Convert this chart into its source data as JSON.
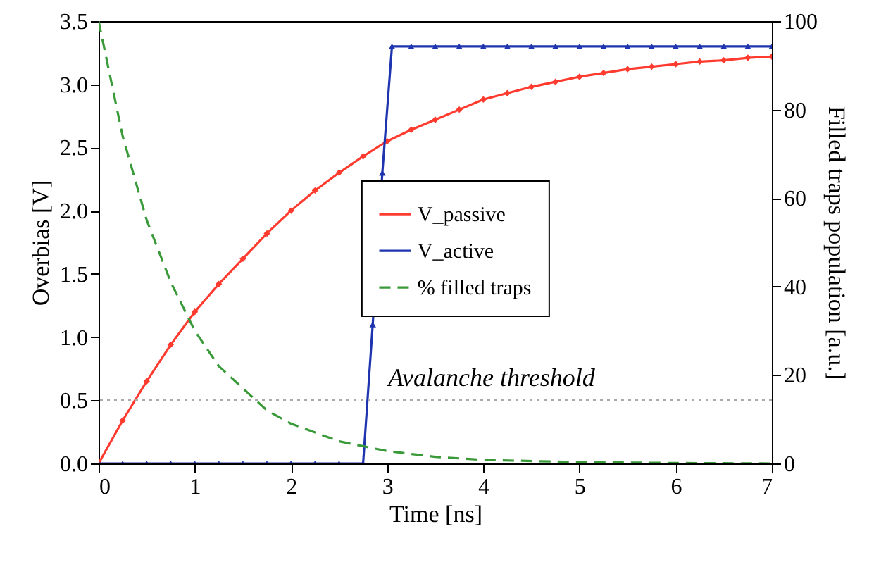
{
  "chart_data": {
    "type": "line",
    "xlabel": "Time [ns]",
    "ylabel": "Overbias [V]",
    "y2label": "Filled traps population [a.u.]",
    "xlim": [
      0,
      7
    ],
    "xticks": [
      0,
      1,
      2,
      3,
      4,
      5,
      6,
      7
    ],
    "ylim": [
      0,
      3.5
    ],
    "yticks": [
      {
        "value": 0,
        "label": "0.0"
      },
      {
        "value": 0.5,
        "label": "0.5"
      },
      {
        "value": 1,
        "label": "1.0"
      },
      {
        "value": 1.5,
        "label": "1.5"
      },
      {
        "value": 2,
        "label": "2.0"
      },
      {
        "value": 2.5,
        "label": "2.5"
      },
      {
        "value": 3,
        "label": "3.0"
      },
      {
        "value": 3.5,
        "label": "3.5"
      }
    ],
    "y2lim": [
      0,
      100
    ],
    "y2ticks": [
      0,
      20,
      40,
      60,
      80,
      100
    ],
    "grid": false,
    "legend": "right",
    "series": [
      {
        "name": "V_passive",
        "color": "#ff3b2f",
        "marker": "diamond",
        "line_style": "solid",
        "x": [
          0,
          0.25,
          0.5,
          0.75,
          1,
          1.25,
          1.5,
          1.75,
          2,
          2.25,
          2.5,
          2.75,
          3,
          3.25,
          3.5,
          3.75,
          4,
          4.25,
          4.5,
          4.75,
          5,
          5.25,
          5.5,
          5.75,
          6,
          6.25,
          6.5,
          6.75,
          7
        ],
        "values": [
          0,
          0.34,
          0.65,
          0.94,
          1.2,
          1.42,
          1.62,
          1.82,
          2,
          2.16,
          2.3,
          2.43,
          2.55,
          2.64,
          2.72,
          2.8,
          2.88,
          2.93,
          2.98,
          3.02,
          3.06,
          3.09,
          3.12,
          3.14,
          3.16,
          3.18,
          3.19,
          3.21,
          3.22
        ]
      },
      {
        "name": "V_active",
        "color": "#1f35b0",
        "marker": "triangle",
        "line_style": "solid",
        "x": [
          0,
          0.25,
          0.5,
          0.75,
          1,
          1.25,
          1.5,
          1.75,
          2,
          2.25,
          2.5,
          2.75,
          2.85,
          2.95,
          3.05,
          3.25,
          3.5,
          3.75,
          4,
          4.25,
          4.5,
          4.75,
          5,
          5.25,
          5.5,
          5.75,
          6,
          6.25,
          6.5,
          6.75,
          7
        ],
        "values": [
          0,
          0,
          0,
          0,
          0,
          0,
          0,
          0,
          0,
          0,
          0,
          0,
          1.1,
          2.3,
          3.3,
          3.3,
          3.3,
          3.3,
          3.3,
          3.3,
          3.3,
          3.3,
          3.3,
          3.3,
          3.3,
          3.3,
          3.3,
          3.3,
          3.3,
          3.3,
          3.3
        ]
      },
      {
        "name": "% filled traps",
        "color": "#3a9a3a",
        "marker": "none",
        "line_style": "dashed",
        "axis": "y2",
        "x": [
          0,
          0.25,
          0.5,
          0.75,
          1,
          1.25,
          1.5,
          1.75,
          2,
          2.5,
          3,
          3.5,
          4,
          5,
          6,
          7
        ],
        "values": [
          100,
          74,
          55,
          41,
          30,
          22,
          17,
          12,
          9,
          5,
          2.8,
          1.5,
          0.8,
          0.3,
          0.1,
          0
        ]
      }
    ],
    "ref_lines": [
      {
        "axis": "y",
        "value": 0.5,
        "label": "Avalanche threshold",
        "color": "#aaaaaa",
        "line_style": "dotted"
      }
    ]
  }
}
